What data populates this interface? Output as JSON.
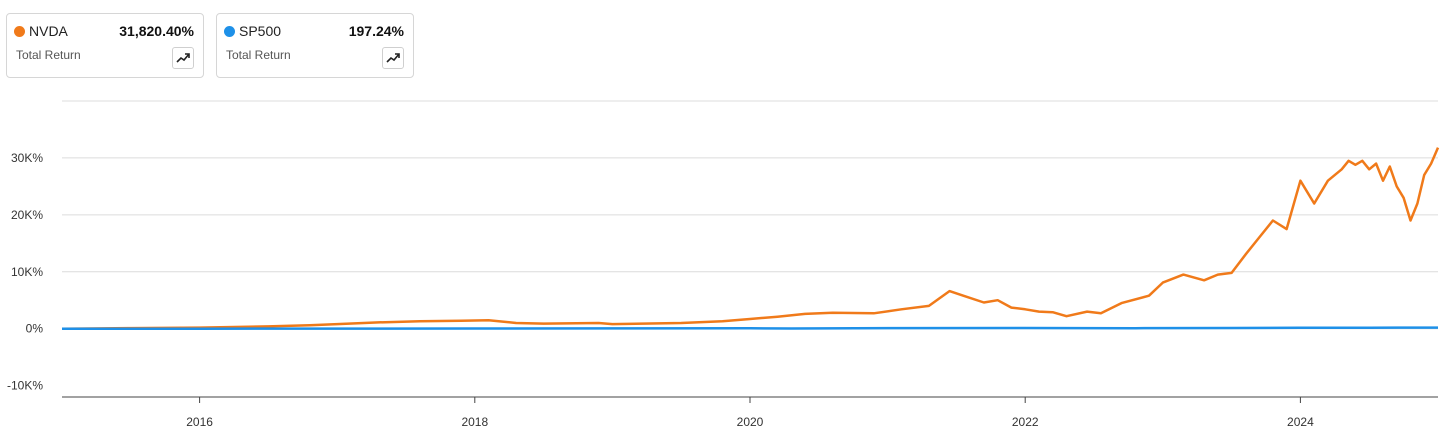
{
  "legend": [
    {
      "ticker": "NVDA",
      "value": "31,820.40%",
      "subtitle": "Total Return",
      "color": "#f07a1a",
      "button_icon": "trending-up-icon"
    },
    {
      "ticker": "SP500",
      "value": "197.24%",
      "subtitle": "Total Return",
      "color": "#1e90e8",
      "button_icon": "trending-up-icon"
    }
  ],
  "chart_data": {
    "type": "line",
    "title": "",
    "xlabel": "",
    "ylabel": "",
    "x_range": [
      2015.0,
      2025.0
    ],
    "ylim": [
      -12000,
      40000
    ],
    "y_ticks": [
      {
        "value": -10000,
        "label": "-10K%"
      },
      {
        "value": 0,
        "label": "0%"
      },
      {
        "value": 10000,
        "label": "10K%"
      },
      {
        "value": 20000,
        "label": "20K%"
      },
      {
        "value": 30000,
        "label": "30K%"
      }
    ],
    "x_ticks": [
      {
        "value": 2016,
        "label": "2016"
      },
      {
        "value": 2018,
        "label": "2018"
      },
      {
        "value": 2020,
        "label": "2020"
      },
      {
        "value": 2022,
        "label": "2022"
      },
      {
        "value": 2024,
        "label": "2024"
      }
    ],
    "grid": true,
    "series": [
      {
        "name": "NVDA",
        "color": "#f07a1a",
        "x": [
          2015.0,
          2015.5,
          2016.0,
          2016.5,
          2016.8,
          2017.0,
          2017.3,
          2017.6,
          2017.9,
          2018.1,
          2018.3,
          2018.5,
          2018.9,
          2019.0,
          2019.5,
          2019.8,
          2020.0,
          2020.2,
          2020.4,
          2020.6,
          2020.9,
          2021.1,
          2021.3,
          2021.45,
          2021.55,
          2021.7,
          2021.8,
          2021.9,
          2022.0,
          2022.1,
          2022.2,
          2022.3,
          2022.45,
          2022.55,
          2022.7,
          2022.9,
          2023.0,
          2023.15,
          2023.3,
          2023.4,
          2023.5,
          2023.6,
          2023.7,
          2023.8,
          2023.9,
          2024.0,
          2024.1,
          2024.2,
          2024.3,
          2024.35,
          2024.4,
          2024.45,
          2024.5,
          2024.55,
          2024.6,
          2024.65,
          2024.7,
          2024.75,
          2024.8,
          2024.85,
          2024.9,
          2024.95,
          2025.0
        ],
        "y": [
          0,
          100,
          200,
          400,
          600,
          800,
          1100,
          1300,
          1400,
          1500,
          1000,
          900,
          1000,
          800,
          1000,
          1300,
          1700,
          2100,
          2600,
          2800,
          2700,
          3400,
          4000,
          6600,
          5800,
          4600,
          5000,
          3700,
          3400,
          3000,
          2900,
          2200,
          3000,
          2700,
          4500,
          5800,
          8100,
          9500,
          8500,
          9500,
          9800,
          13000,
          16000,
          19000,
          17500,
          26000,
          22000,
          26000,
          28000,
          29500,
          28800,
          29500,
          28000,
          29000,
          26000,
          28500,
          25000,
          23000,
          19000,
          22000,
          27000,
          29000,
          31820
        ]
      },
      {
        "name": "SP500",
        "color": "#1e90e8",
        "x": [
          2015.0,
          2016.0,
          2017.0,
          2018.0,
          2019.0,
          2020.0,
          2020.3,
          2021.0,
          2022.0,
          2022.8,
          2023.5,
          2024.0,
          2024.5,
          2025.0
        ],
        "y": [
          0,
          5,
          20,
          40,
          50,
          70,
          30,
          100,
          130,
          90,
          120,
          150,
          175,
          197
        ]
      }
    ]
  }
}
